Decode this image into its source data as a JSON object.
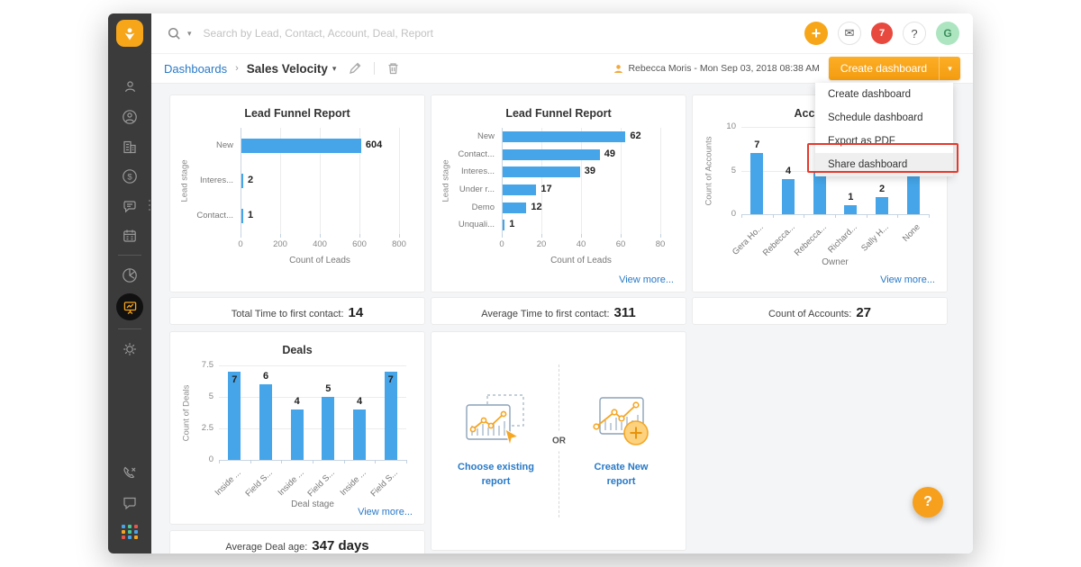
{
  "topbar": {
    "search_placeholder": "Search by Lead, Contact, Account, Deal, Report",
    "notification_count": "7",
    "avatar_initial": "G",
    "help_glyph": "?"
  },
  "header": {
    "breadcrumb_root": "Dashboards",
    "breadcrumb_current": "Sales Velocity",
    "updated_by": "Rebecca Moris - Mon Sep 03, 2018 08:38 AM",
    "create_button": "Create dashboard"
  },
  "menu": {
    "items": [
      "Create dashboard",
      "Schedule dashboard",
      "Export as PDF",
      "Share dashboard"
    ],
    "highlighted": "Share dashboard"
  },
  "sidebar": {
    "icons": [
      "freshsales-logo",
      "leads",
      "contacts",
      "accounts",
      "deals",
      "conversations",
      "calendar",
      "reports",
      "dashboards",
      "settings",
      "phone",
      "live-chat",
      "apps"
    ],
    "active": "dashboards"
  },
  "chart_data": [
    {
      "type": "bar",
      "orientation": "horizontal",
      "title": "Lead Funnel Report",
      "categories": [
        "New",
        "Interes...",
        "Contact..."
      ],
      "values": [
        604,
        2,
        1
      ],
      "xlabel": "Count of Leads",
      "ylabel": "Lead stage",
      "xlim": [
        0,
        800
      ],
      "xticks": [
        0,
        200,
        400,
        600,
        800
      ],
      "grid": true,
      "bar_color": "#45a5e8"
    },
    {
      "type": "bar",
      "orientation": "horizontal",
      "title": "Lead Funnel Report",
      "categories": [
        "New",
        "Contact...",
        "Interes...",
        "Under r...",
        "Demo",
        "Unquali..."
      ],
      "values": [
        62,
        49,
        39,
        17,
        12,
        1
      ],
      "xlabel": "Count of Leads",
      "ylabel": "Lead stage",
      "xlim": [
        0,
        80
      ],
      "xticks": [
        0,
        20,
        40,
        60,
        80
      ],
      "grid": true,
      "bar_color": "#45a5e8"
    },
    {
      "type": "bar",
      "orientation": "vertical",
      "title": "Accounts",
      "categories": [
        "Gera Ho...",
        "Rebecca...",
        "Rebecca...",
        "Richard...",
        "Sally H...",
        "None"
      ],
      "values": [
        7,
        4,
        5,
        1,
        2,
        8
      ],
      "xlabel": "Owner",
      "ylabel": "Count of Accounts",
      "ylim": [
        0,
        10
      ],
      "yticks": [
        0,
        5,
        10
      ],
      "grid": true,
      "bar_color": "#45a5e8"
    },
    {
      "type": "bar",
      "orientation": "vertical",
      "title": "Deals",
      "categories": [
        "Inside ...",
        "Field S...",
        "Inside ...",
        "Field S...",
        "Inside ...",
        "Field S..."
      ],
      "values": [
        7,
        6,
        4,
        5,
        4,
        7
      ],
      "xlabel": "Deal stage",
      "ylabel": "Count of Deals",
      "ylim": [
        0,
        7.5
      ],
      "yticks": [
        0,
        2.5,
        5,
        7.5
      ],
      "grid": true,
      "bar_color": "#45a5e8"
    }
  ],
  "stats": [
    {
      "label": "Total Time to first contact:",
      "value": "14"
    },
    {
      "label": "Average Time to first contact:",
      "value": "311"
    },
    {
      "label": "Count of Accounts:",
      "value": "27"
    },
    {
      "label": "Average Deal age:",
      "value": "347 days"
    }
  ],
  "view_more": "View more...",
  "empty_card": {
    "option1": "Choose existing report",
    "or": "OR",
    "option2": "Create New report"
  },
  "colors": {
    "accent_orange": "#f7a619",
    "bar_blue": "#45a5e8",
    "link_blue": "#2879c8",
    "badge_red": "#e8493e",
    "avatar_green": "#ade5c1",
    "sidebar_bg": "#3b3b3b",
    "highlight_red": "#e6392b",
    "content_bg": "#f4f5f7"
  }
}
